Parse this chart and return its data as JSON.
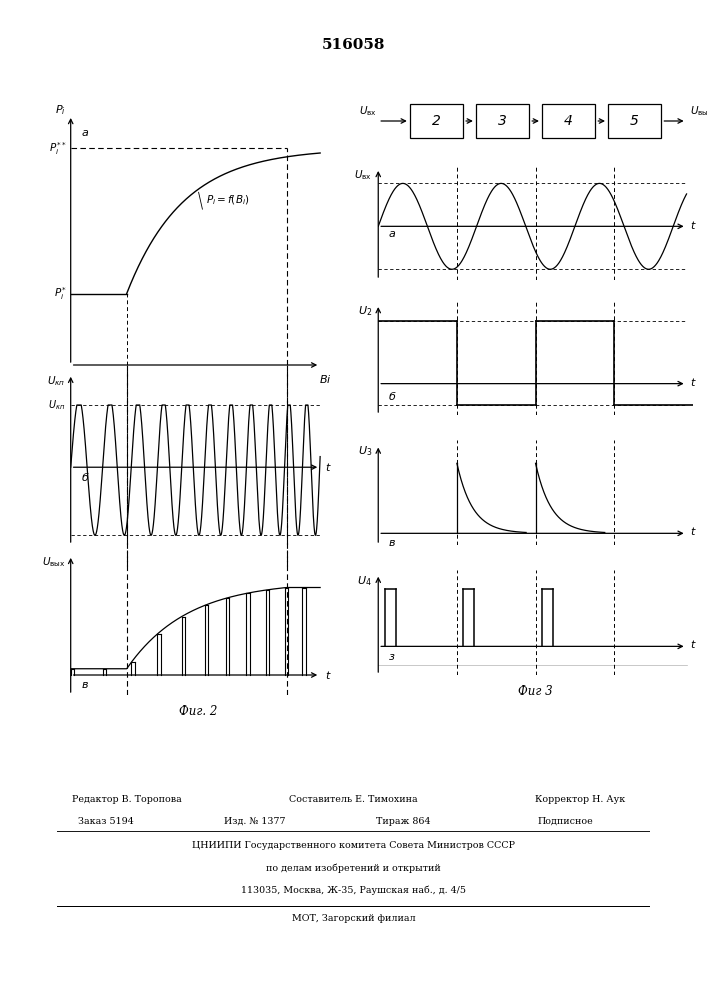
{
  "title": "516058",
  "fig2_label": "Фиг. 2",
  "fig3_label": "Фиг 3",
  "bg_color": "#ffffff",
  "footer_line1_l": "Редактор В. Торопова",
  "footer_line1_c": "Составитель Е. Тимохина",
  "footer_line1_r": "Корректор Н. Аук",
  "footer_line2_l": "Заказ 5194",
  "footer_line2_c1": "Изд. № 1377",
  "footer_line2_c2": "Тираж 864",
  "footer_line2_r": "Подписное",
  "footer_line3": "ЦНИИПИ Государственного комитета Совета Министров СССР",
  "footer_line4": "по делам изобретений и открытий",
  "footer_line5": "113035, Москва, Ж-35, Раушская наб., д. 4/5",
  "footer_line6": "МОТ, Загорский филиал"
}
